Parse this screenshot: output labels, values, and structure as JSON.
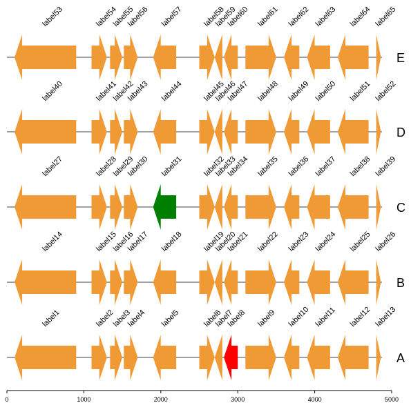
{
  "chart_data": {
    "type": "gene_arrow_map",
    "xlim": [
      0,
      5000
    ],
    "x_ticks": [
      0,
      1000,
      2000,
      3000,
      4000,
      5000
    ],
    "x_tick_labels": [
      "0",
      "1000",
      "2000",
      "3000",
      "4000",
      "5000"
    ],
    "colors": {
      "default": "#f09a36",
      "green": "#008000",
      "red": "#ff0000",
      "line": "#000000"
    },
    "tracks": [
      {
        "name": "E",
        "genes": [
          {
            "label": "label53",
            "start": 100,
            "end": 900,
            "strand": -1,
            "color": "#f09a36"
          },
          {
            "label": "label54",
            "start": 1100,
            "end": 1300,
            "strand": 1,
            "color": "#f09a36"
          },
          {
            "label": "label55",
            "start": 1340,
            "end": 1500,
            "strand": 1,
            "color": "#f09a36"
          },
          {
            "label": "label56",
            "start": 1520,
            "end": 1700,
            "strand": 1,
            "color": "#f09a36"
          },
          {
            "label": "label57",
            "start": 1900,
            "end": 2200,
            "strand": -1,
            "color": "#f09a36"
          },
          {
            "label": "label58",
            "start": 2500,
            "end": 2700,
            "strand": 1,
            "color": "#f09a36"
          },
          {
            "label": "label59",
            "start": 2700,
            "end": 2800,
            "strand": -1,
            "color": "#f09a36"
          },
          {
            "label": "label60",
            "start": 2820,
            "end": 3000,
            "strand": -1,
            "color": "#f09a36"
          },
          {
            "label": "label61",
            "start": 3100,
            "end": 3500,
            "strand": 1,
            "color": "#f09a36"
          },
          {
            "label": "label62",
            "start": 3600,
            "end": 3800,
            "strand": -1,
            "color": "#f09a36"
          },
          {
            "label": "label63",
            "start": 3900,
            "end": 4200,
            "strand": -1,
            "color": "#f09a36"
          },
          {
            "label": "label64",
            "start": 4300,
            "end": 4700,
            "strand": -1,
            "color": "#f09a36"
          },
          {
            "label": "label65",
            "start": 4800,
            "end": 4860,
            "strand": 1,
            "color": "#f09a36"
          }
        ]
      },
      {
        "name": "D",
        "genes": [
          {
            "label": "label40",
            "start": 100,
            "end": 900,
            "strand": -1,
            "color": "#f09a36"
          },
          {
            "label": "label41",
            "start": 1100,
            "end": 1300,
            "strand": 1,
            "color": "#f09a36"
          },
          {
            "label": "label42",
            "start": 1340,
            "end": 1500,
            "strand": 1,
            "color": "#f09a36"
          },
          {
            "label": "label43",
            "start": 1520,
            "end": 1700,
            "strand": 1,
            "color": "#f09a36"
          },
          {
            "label": "label44",
            "start": 1900,
            "end": 2200,
            "strand": -1,
            "color": "#f09a36"
          },
          {
            "label": "label45",
            "start": 2500,
            "end": 2700,
            "strand": 1,
            "color": "#f09a36"
          },
          {
            "label": "label46",
            "start": 2700,
            "end": 2800,
            "strand": -1,
            "color": "#f09a36"
          },
          {
            "label": "label47",
            "start": 2820,
            "end": 3000,
            "strand": -1,
            "color": "#f09a36"
          },
          {
            "label": "label48",
            "start": 3100,
            "end": 3500,
            "strand": 1,
            "color": "#f09a36"
          },
          {
            "label": "label49",
            "start": 3600,
            "end": 3800,
            "strand": -1,
            "color": "#f09a36"
          },
          {
            "label": "label50",
            "start": 3900,
            "end": 4200,
            "strand": -1,
            "color": "#f09a36"
          },
          {
            "label": "label51",
            "start": 4300,
            "end": 4700,
            "strand": -1,
            "color": "#f09a36"
          },
          {
            "label": "label52",
            "start": 4800,
            "end": 4860,
            "strand": 1,
            "color": "#f09a36"
          }
        ]
      },
      {
        "name": "C",
        "genes": [
          {
            "label": "label27",
            "start": 100,
            "end": 900,
            "strand": -1,
            "color": "#f09a36"
          },
          {
            "label": "label28",
            "start": 1100,
            "end": 1300,
            "strand": 1,
            "color": "#f09a36"
          },
          {
            "label": "label29",
            "start": 1340,
            "end": 1500,
            "strand": 1,
            "color": "#f09a36"
          },
          {
            "label": "label30",
            "start": 1520,
            "end": 1700,
            "strand": 1,
            "color": "#f09a36"
          },
          {
            "label": "label31",
            "start": 1900,
            "end": 2200,
            "strand": -1,
            "color": "#008000"
          },
          {
            "label": "label32",
            "start": 2500,
            "end": 2700,
            "strand": 1,
            "color": "#f09a36"
          },
          {
            "label": "label33",
            "start": 2700,
            "end": 2800,
            "strand": -1,
            "color": "#f09a36"
          },
          {
            "label": "label34",
            "start": 2820,
            "end": 3000,
            "strand": -1,
            "color": "#f09a36"
          },
          {
            "label": "label35",
            "start": 3100,
            "end": 3500,
            "strand": 1,
            "color": "#f09a36"
          },
          {
            "label": "label36",
            "start": 3600,
            "end": 3800,
            "strand": -1,
            "color": "#f09a36"
          },
          {
            "label": "label37",
            "start": 3900,
            "end": 4200,
            "strand": -1,
            "color": "#f09a36"
          },
          {
            "label": "label38",
            "start": 4300,
            "end": 4700,
            "strand": -1,
            "color": "#f09a36"
          },
          {
            "label": "label39",
            "start": 4800,
            "end": 4860,
            "strand": 1,
            "color": "#f09a36"
          }
        ]
      },
      {
        "name": "B",
        "genes": [
          {
            "label": "label14",
            "start": 100,
            "end": 900,
            "strand": -1,
            "color": "#f09a36"
          },
          {
            "label": "label15",
            "start": 1100,
            "end": 1300,
            "strand": 1,
            "color": "#f09a36"
          },
          {
            "label": "label16",
            "start": 1340,
            "end": 1500,
            "strand": 1,
            "color": "#f09a36"
          },
          {
            "label": "label17",
            "start": 1520,
            "end": 1700,
            "strand": 1,
            "color": "#f09a36"
          },
          {
            "label": "label18",
            "start": 1900,
            "end": 2200,
            "strand": -1,
            "color": "#f09a36"
          },
          {
            "label": "label19",
            "start": 2500,
            "end": 2700,
            "strand": 1,
            "color": "#f09a36"
          },
          {
            "label": "label20",
            "start": 2700,
            "end": 2800,
            "strand": -1,
            "color": "#f09a36"
          },
          {
            "label": "label21",
            "start": 2820,
            "end": 3000,
            "strand": -1,
            "color": "#f09a36"
          },
          {
            "label": "label22",
            "start": 3100,
            "end": 3500,
            "strand": 1,
            "color": "#f09a36"
          },
          {
            "label": "label23",
            "start": 3600,
            "end": 3800,
            "strand": -1,
            "color": "#f09a36"
          },
          {
            "label": "label24",
            "start": 3900,
            "end": 4200,
            "strand": -1,
            "color": "#f09a36"
          },
          {
            "label": "label25",
            "start": 4300,
            "end": 4700,
            "strand": -1,
            "color": "#f09a36"
          },
          {
            "label": "label26",
            "start": 4800,
            "end": 4860,
            "strand": 1,
            "color": "#f09a36"
          }
        ]
      },
      {
        "name": "A",
        "genes": [
          {
            "label": "label1",
            "start": 100,
            "end": 900,
            "strand": -1,
            "color": "#f09a36"
          },
          {
            "label": "label2",
            "start": 1100,
            "end": 1300,
            "strand": 1,
            "color": "#f09a36"
          },
          {
            "label": "label3",
            "start": 1340,
            "end": 1500,
            "strand": 1,
            "color": "#f09a36"
          },
          {
            "label": "label4",
            "start": 1520,
            "end": 1700,
            "strand": 1,
            "color": "#f09a36"
          },
          {
            "label": "label5",
            "start": 1900,
            "end": 2200,
            "strand": -1,
            "color": "#f09a36"
          },
          {
            "label": "label6",
            "start": 2500,
            "end": 2700,
            "strand": 1,
            "color": "#f09a36"
          },
          {
            "label": "label7",
            "start": 2700,
            "end": 2800,
            "strand": -1,
            "color": "#f09a36"
          },
          {
            "label": "label8",
            "start": 2820,
            "end": 3000,
            "strand": -1,
            "color": "#ff0000"
          },
          {
            "label": "label9",
            "start": 3100,
            "end": 3500,
            "strand": 1,
            "color": "#f09a36"
          },
          {
            "label": "label10",
            "start": 3600,
            "end": 3800,
            "strand": -1,
            "color": "#f09a36"
          },
          {
            "label": "label11",
            "start": 3900,
            "end": 4200,
            "strand": -1,
            "color": "#f09a36"
          },
          {
            "label": "label12",
            "start": 4300,
            "end": 4700,
            "strand": -1,
            "color": "#f09a36"
          },
          {
            "label": "label13",
            "start": 4800,
            "end": 4860,
            "strand": 1,
            "color": "#f09a36"
          }
        ]
      }
    ]
  }
}
